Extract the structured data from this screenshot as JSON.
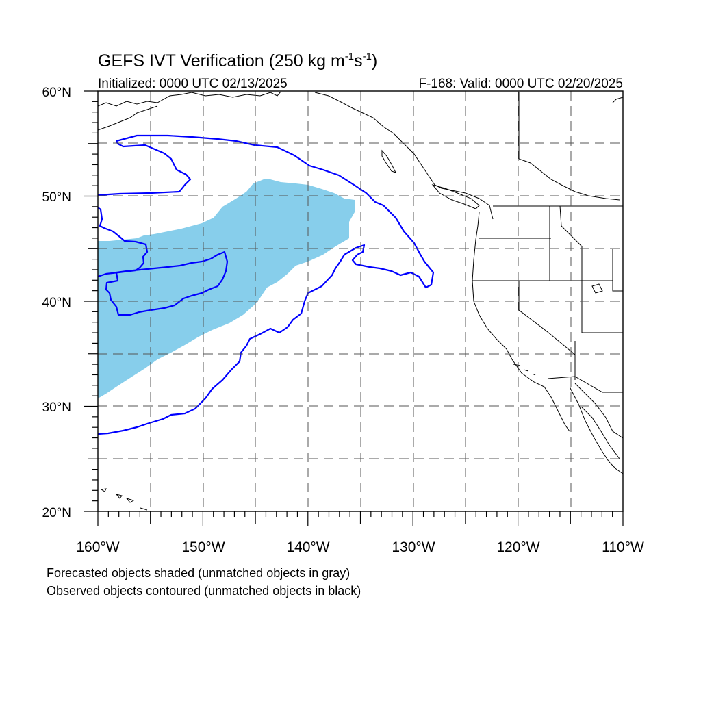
{
  "title": {
    "main": "GEFS IVT Verification (250 kg m",
    "sup1": "-1",
    "s": "s",
    "sup2": "-1",
    "close": ")"
  },
  "subtitle_left": "Initialized: 0000 UTC 02/13/2025",
  "subtitle_right": "F-168: Valid: 0000 UTC 02/20/2025",
  "lat_labels": [
    "60°N",
    "50°N",
    "40°N",
    "30°N",
    "20°N"
  ],
  "lon_labels": [
    "160°W",
    "150°W",
    "140°W",
    "130°W",
    "120°W",
    "110°W"
  ],
  "footnotes": [
    "Forecasted objects shaded (unmatched objects in gray)",
    "Observed objects contoured (unmatched objects in black)"
  ],
  "colors": {
    "forecast_fill": "#87ceeb",
    "observed_contour": "#0000ff",
    "coastline": "#000000",
    "grid": "#555555"
  },
  "map": {
    "projection": "cylindrical-equidistant",
    "lat_range": [
      20,
      60
    ],
    "lon_range": [
      -160,
      -110
    ],
    "grid_lines": "dashed every 5 degrees"
  }
}
